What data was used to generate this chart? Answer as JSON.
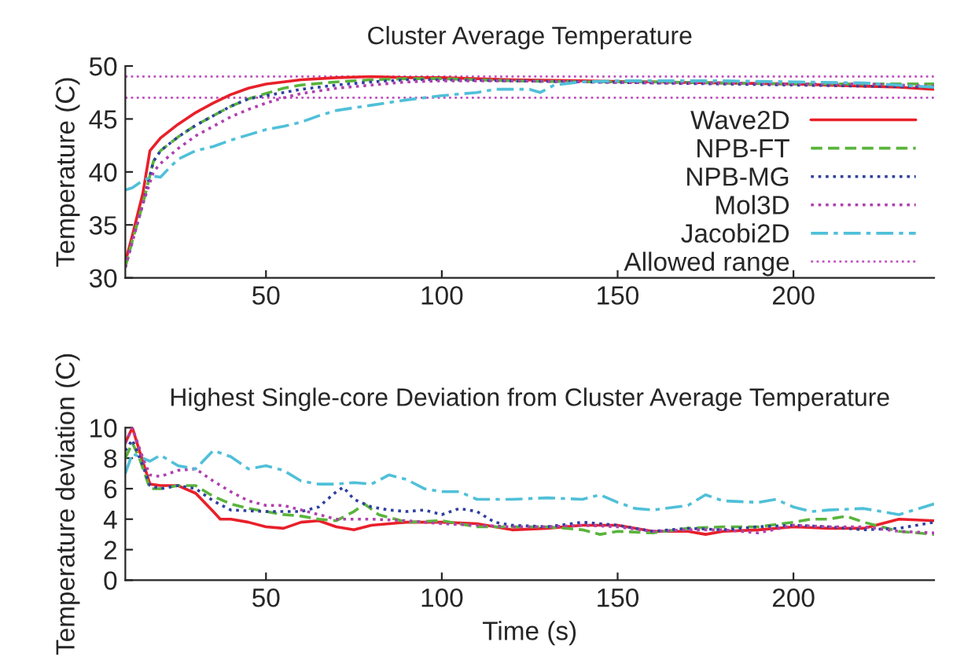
{
  "chart_data": [
    {
      "type": "line",
      "title": "Cluster Average Temperature",
      "ylabel": "Temperature (C)",
      "xlim": [
        10,
        240
      ],
      "ylim": [
        30,
        50
      ],
      "xticks": [
        50,
        100,
        150,
        200
      ],
      "yticks": [
        30,
        35,
        40,
        45,
        50
      ],
      "grid": false,
      "legend": "right",
      "ref_lines": [
        {
          "axis": "y",
          "value": 47,
          "label": "Allowed range",
          "color": "#c050c0",
          "line_style": "dotted"
        },
        {
          "axis": "y",
          "value": 49,
          "color": "#c050c0",
          "line_style": "dotted"
        }
      ],
      "series": [
        {
          "name": "Wave2D",
          "color": "#e8202a",
          "line_style": "solid",
          "x": [
            10,
            12,
            15,
            17,
            20,
            25,
            30,
            35,
            40,
            45,
            50,
            55,
            60,
            70,
            80,
            90,
            100,
            120,
            140,
            160,
            180,
            200,
            220,
            230,
            240
          ],
          "values": [
            31.5,
            34,
            38,
            42,
            43.2,
            44.5,
            45.6,
            46.5,
            47.3,
            47.9,
            48.3,
            48.5,
            48.7,
            48.9,
            49.0,
            48.9,
            48.9,
            48.7,
            48.6,
            48.5,
            48.4,
            48.3,
            48.1,
            48.0,
            47.8
          ]
        },
        {
          "name": "NPB-FT",
          "color": "#5ab43c",
          "line_style": "dashed",
          "x": [
            10,
            12,
            15,
            18,
            20,
            25,
            30,
            35,
            40,
            45,
            50,
            55,
            60,
            70,
            80,
            90,
            100,
            120,
            140,
            160,
            180,
            200,
            220,
            240
          ],
          "values": [
            31,
            33.5,
            37,
            41,
            42,
            43.3,
            44.4,
            45.3,
            46.2,
            46.9,
            47.4,
            47.9,
            48.2,
            48.5,
            48.7,
            48.8,
            48.8,
            48.6,
            48.5,
            48.5,
            48.4,
            48.3,
            48.3,
            48.3
          ]
        },
        {
          "name": "NPB-MG",
          "color": "#3040a0",
          "line_style": "dotted",
          "x": [
            10,
            12,
            15,
            18,
            20,
            25,
            30,
            35,
            40,
            45,
            50,
            55,
            60,
            70,
            80,
            90,
            100,
            120,
            140,
            160,
            180,
            200,
            220,
            240
          ],
          "values": [
            31,
            33.5,
            37,
            41,
            42,
            43.3,
            44.4,
            45.3,
            46.2,
            46.9,
            47.2,
            47.5,
            47.8,
            48.2,
            48.5,
            48.7,
            48.7,
            48.6,
            48.5,
            48.4,
            48.3,
            48.2,
            48.1,
            48.0
          ]
        },
        {
          "name": "Mol3D",
          "color": "#b040b0",
          "line_style": "dotted",
          "x": [
            10,
            15,
            18,
            20,
            25,
            30,
            35,
            40,
            45,
            50,
            55,
            60,
            70,
            80,
            90,
            100,
            120,
            140,
            160,
            180,
            200,
            220,
            240
          ],
          "values": [
            31,
            37,
            40,
            40.8,
            42.2,
            43.4,
            44.3,
            45.2,
            45.9,
            46.5,
            47,
            47.4,
            47.9,
            48.2,
            48.5,
            48.6,
            48.6,
            48.5,
            48.4,
            48.4,
            48.3,
            48.3,
            48.1
          ]
        },
        {
          "name": "Jacobi2D",
          "color": "#50c0d8",
          "line_style": "dashdot",
          "x": [
            10,
            12,
            15,
            18,
            20,
            22,
            25,
            30,
            35,
            40,
            45,
            50,
            55,
            60,
            65,
            70,
            80,
            90,
            100,
            110,
            115,
            125,
            128,
            132,
            140,
            150,
            160,
            180,
            200,
            220,
            240
          ],
          "values": [
            38.3,
            38.5,
            39.2,
            39.6,
            39.5,
            40.2,
            41.2,
            42.0,
            42.4,
            43.0,
            43.5,
            44.0,
            44.3,
            44.7,
            45.3,
            45.8,
            46.3,
            46.8,
            47.2,
            47.5,
            47.8,
            47.8,
            47.5,
            48.2,
            48.5,
            48.6,
            48.6,
            48.6,
            48.5,
            48.4,
            48.0
          ]
        }
      ]
    },
    {
      "type": "line",
      "title": "Highest Single-core Deviation from Cluster Average Temperature",
      "xlabel": "Time (s)",
      "ylabel": "Temperature deviation (C)",
      "xlim": [
        10,
        240
      ],
      "ylim": [
        0,
        10
      ],
      "xticks": [
        50,
        100,
        150,
        200
      ],
      "yticks": [
        0,
        2,
        4,
        6,
        8,
        10
      ],
      "grid": false,
      "legend": false,
      "series": [
        {
          "color": "#e8202a",
          "line_style": "solid",
          "x": [
            10,
            12,
            14,
            17,
            20,
            25,
            30,
            35,
            37,
            40,
            45,
            50,
            55,
            60,
            65,
            70,
            75,
            80,
            90,
            100,
            110,
            120,
            130,
            140,
            150,
            160,
            170,
            175,
            180,
            190,
            200,
            210,
            220,
            230,
            240
          ],
          "values": [
            9,
            10,
            8.5,
            6.3,
            6.2,
            6.2,
            5.7,
            4.5,
            4.0,
            4.0,
            3.8,
            3.5,
            3.4,
            3.8,
            3.9,
            3.5,
            3.3,
            3.6,
            3.8,
            3.8,
            3.7,
            3.3,
            3.4,
            3.6,
            3.6,
            3.2,
            3.2,
            3.0,
            3.2,
            3.3,
            3.5,
            3.4,
            3.4,
            4.0,
            3.9
          ]
        },
        {
          "color": "#5ab43c",
          "line_style": "dashed",
          "x": [
            10,
            12,
            14,
            17,
            20,
            25,
            30,
            35,
            40,
            45,
            50,
            55,
            60,
            65,
            70,
            75,
            78,
            82,
            90,
            100,
            110,
            120,
            130,
            140,
            145,
            150,
            160,
            170,
            180,
            190,
            200,
            205,
            210,
            215,
            220,
            230,
            240
          ],
          "values": [
            8,
            9,
            8,
            6.0,
            6.0,
            6.2,
            6.2,
            5.5,
            5.0,
            4.7,
            4.5,
            4.3,
            4.2,
            4.0,
            3.9,
            4.5,
            5.0,
            4.3,
            3.8,
            3.9,
            3.5,
            3.5,
            3.5,
            3.3,
            3.0,
            3.2,
            3.1,
            3.4,
            3.5,
            3.5,
            3.8,
            4.0,
            4.0,
            4.2,
            3.8,
            3.2,
            3.0
          ]
        },
        {
          "color": "#3040a0",
          "line_style": "dotted",
          "x": [
            10,
            12,
            15,
            17,
            20,
            25,
            30,
            35,
            40,
            50,
            60,
            65,
            70,
            72,
            75,
            80,
            85,
            90,
            95,
            100,
            105,
            110,
            115,
            120,
            130,
            140,
            150,
            160,
            170,
            180,
            190,
            200,
            210,
            220,
            230,
            240
          ],
          "values": [
            8.5,
            9.2,
            7.5,
            6.2,
            6.0,
            6.2,
            6.0,
            5.2,
            4.6,
            4.5,
            4.5,
            4.8,
            5.8,
            6.1,
            5.3,
            4.8,
            4.6,
            4.5,
            4.6,
            4.3,
            4.7,
            4.5,
            3.8,
            3.6,
            3.5,
            3.8,
            3.6,
            3.2,
            3.4,
            3.3,
            3.5,
            3.6,
            3.5,
            3.3,
            3.4,
            3.8
          ]
        },
        {
          "color": "#b040b0",
          "line_style": "dotted",
          "x": [
            10,
            12,
            15,
            17,
            20,
            25,
            30,
            35,
            40,
            45,
            50,
            55,
            60,
            70,
            80,
            90,
            100,
            110,
            120,
            130,
            140,
            150,
            160,
            170,
            180,
            190,
            200,
            210,
            220,
            230,
            240
          ],
          "values": [
            9,
            10,
            8,
            6.9,
            6.8,
            7.2,
            7.3,
            6.5,
            5.8,
            5.2,
            4.9,
            4.9,
            4.6,
            4.0,
            4.0,
            3.9,
            3.7,
            3.6,
            3.5,
            3.5,
            3.6,
            3.5,
            3.2,
            3.3,
            3.3,
            3.1,
            3.6,
            3.5,
            3.5,
            3.2,
            3.1
          ]
        },
        {
          "color": "#50c0d8",
          "line_style": "dashdot",
          "x": [
            10,
            12,
            15,
            17,
            20,
            25,
            30,
            35,
            40,
            45,
            50,
            55,
            60,
            65,
            70,
            75,
            80,
            85,
            90,
            95,
            100,
            105,
            110,
            120,
            130,
            140,
            145,
            150,
            155,
            160,
            170,
            175,
            180,
            190,
            195,
            200,
            205,
            210,
            220,
            230,
            240
          ],
          "values": [
            7.0,
            8.3,
            8.0,
            7.8,
            8.2,
            7.5,
            7.3,
            8.5,
            8.1,
            7.3,
            7.5,
            7.2,
            6.5,
            6.3,
            6.3,
            6.4,
            6.3,
            6.9,
            6.6,
            6.0,
            5.8,
            5.8,
            5.3,
            5.3,
            5.4,
            5.3,
            5.6,
            5.1,
            4.7,
            4.6,
            4.9,
            5.6,
            5.2,
            5.1,
            5.3,
            4.8,
            4.5,
            4.6,
            4.7,
            4.3,
            5.0
          ]
        }
      ]
    }
  ]
}
